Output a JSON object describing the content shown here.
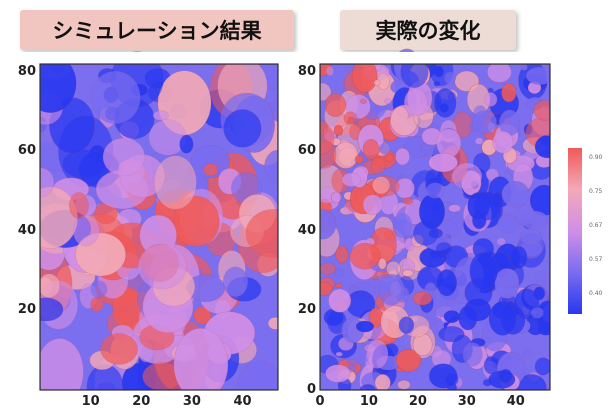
{
  "chart_data": [
    {
      "type": "heatmap",
      "title": "シミュレーション結果",
      "xticks": [
        "10",
        "20",
        "30",
        "40"
      ],
      "yticks": [
        "20",
        "40",
        "60",
        "80"
      ],
      "xlim": [
        0,
        47
      ],
      "ylim": [
        0,
        82
      ],
      "title_bg": "#f2c6c0"
    },
    {
      "type": "heatmap",
      "title": "実際の変化",
      "xticks": [
        "0",
        "10",
        "20",
        "30",
        "40"
      ],
      "yticks": [
        "0",
        "20",
        "40",
        "60",
        "80"
      ],
      "xlim": [
        0,
        47
      ],
      "ylim": [
        0,
        82
      ],
      "title_bg": "#eddcd6"
    }
  ],
  "colorbar": {
    "ticks": [
      "0.90",
      "0.75",
      "0.67",
      "0.57",
      "0.40"
    ],
    "colors": [
      "#f05a5a",
      "#f3a9b8",
      "#d08fe6",
      "#7a6cf0",
      "#2838f0"
    ]
  }
}
